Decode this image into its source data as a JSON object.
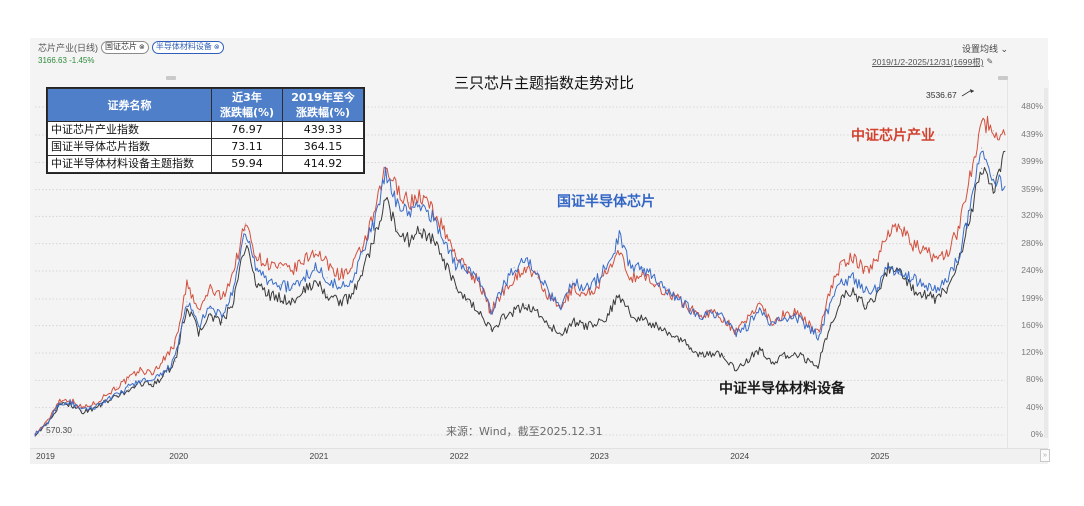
{
  "window": {
    "security_label": "芯片产业(日线)",
    "compare_chips": [
      {
        "label": "国证芯片",
        "close_icon": "close-circle-icon"
      },
      {
        "label": "半导体材料设备",
        "close_icon": "close-circle-icon"
      }
    ],
    "quote": "3166.63 -1.45%",
    "settings_label": "设置均线",
    "settings_icon": "chevron-down-icon",
    "date_range": "2019/1/2-2025/12/31(1699根)",
    "pin_icon": "pin-icon"
  },
  "summary_table": {
    "headers": [
      "证券名称",
      "近3年\n涨跌幅(%)",
      "2019年至今\n涨跌幅(%)"
    ],
    "header_lines": [
      [
        "证券名称"
      ],
      [
        "近3年",
        "涨跌幅(%)"
      ],
      [
        "2019年至今",
        "涨跌幅(%)"
      ]
    ],
    "rows": [
      {
        "name": "中证芯片产业指数",
        "three_year": "76.97",
        "since_2019": "439.33"
      },
      {
        "name": "国证半导体芯片指数",
        "three_year": "73.11",
        "since_2019": "364.15"
      },
      {
        "name": "中证半导体材料设备主题指数",
        "three_year": "59.94",
        "since_2019": "414.92"
      }
    ]
  },
  "annotations": {
    "red_series_label": "中证芯片产业",
    "blue_series_label": "国证半导体芯片",
    "black_series_label": "中证半导体材料设备",
    "source": "来源：Wind，截至2025.12.31",
    "start_value": "570.30",
    "peak_value": "3536.67"
  },
  "colors": {
    "red": "#d2503e",
    "blue": "#3a6cc8",
    "black": "#3a3a3a",
    "header_blue": "#4f7fc8",
    "quote_green": "#2e8b3a"
  },
  "chart_data": {
    "type": "line",
    "title": "三只芯片主题指数走势对比",
    "xlabel": "",
    "ylabel": "",
    "x_ticks": [
      "2019",
      "2020",
      "2021",
      "2022",
      "2023",
      "2024",
      "2025"
    ],
    "y_ticks": [
      "480%",
      "439%",
      "399%",
      "359%",
      "320%",
      "280%",
      "240%",
      "199%",
      "160%",
      "120%",
      "80%",
      "40%",
      "0%"
    ],
    "y_tick_values": [
      480,
      439,
      399,
      359,
      320,
      280,
      240,
      199,
      160,
      120,
      80,
      40,
      0
    ],
    "ylim": [
      0,
      480
    ],
    "xlim": [
      "2019-01",
      "2025-12"
    ],
    "grid": true,
    "legend": "inline-annotations",
    "x": [
      "2019-01",
      "2019-02",
      "2019-03",
      "2019-04",
      "2019-05",
      "2019-06",
      "2019-07",
      "2019-08",
      "2019-09",
      "2019-10",
      "2019-11",
      "2019-12",
      "2020-01",
      "2020-02",
      "2020-03",
      "2020-04",
      "2020-05",
      "2020-06",
      "2020-07",
      "2020-08",
      "2020-09",
      "2020-10",
      "2020-11",
      "2020-12",
      "2021-01",
      "2021-02",
      "2021-03",
      "2021-04",
      "2021-05",
      "2021-06",
      "2021-07",
      "2021-08",
      "2021-09",
      "2021-10",
      "2021-11",
      "2021-12",
      "2022-01",
      "2022-02",
      "2022-03",
      "2022-04",
      "2022-05",
      "2022-06",
      "2022-07",
      "2022-08",
      "2022-09",
      "2022-10",
      "2022-11",
      "2022-12",
      "2023-01",
      "2023-02",
      "2023-03",
      "2023-04",
      "2023-05",
      "2023-06",
      "2023-07",
      "2023-08",
      "2023-09",
      "2023-10",
      "2023-11",
      "2023-12",
      "2024-01",
      "2024-02",
      "2024-03",
      "2024-04",
      "2024-05",
      "2024-06",
      "2024-07",
      "2024-08",
      "2024-09",
      "2024-10",
      "2024-11",
      "2024-12",
      "2025-01",
      "2025-02",
      "2025-03",
      "2025-04",
      "2025-05",
      "2025-06",
      "2025-07",
      "2025-08",
      "2025-09",
      "2025-10",
      "2025-11",
      "2025-12"
    ],
    "series": [
      {
        "name": "中证芯片产业",
        "color": "#d2503e",
        "values": [
          2,
          18,
          50,
          52,
          40,
          45,
          58,
          70,
          82,
          95,
          90,
          110,
          135,
          220,
          180,
          215,
          200,
          240,
          310,
          260,
          250,
          245,
          240,
          255,
          270,
          250,
          235,
          240,
          275,
          320,
          390,
          360,
          340,
          350,
          330,
          300,
          265,
          240,
          225,
          180,
          210,
          230,
          245,
          230,
          200,
          185,
          215,
          205,
          215,
          240,
          265,
          230,
          235,
          220,
          210,
          200,
          185,
          175,
          180,
          170,
          150,
          170,
          195,
          165,
          175,
          180,
          165,
          150,
          210,
          250,
          260,
          240,
          255,
          300,
          305,
          280,
          270,
          260,
          265,
          300,
          380,
          460,
          445,
          439
        ]
      },
      {
        "name": "国证半导体芯片",
        "color": "#3a6cc8",
        "values": [
          1,
          15,
          45,
          48,
          36,
          40,
          50,
          58,
          70,
          80,
          78,
          90,
          112,
          195,
          160,
          185,
          175,
          210,
          300,
          240,
          225,
          220,
          215,
          230,
          245,
          230,
          215,
          225,
          265,
          310,
          380,
          340,
          325,
          335,
          320,
          285,
          250,
          245,
          225,
          180,
          215,
          245,
          255,
          240,
          205,
          190,
          225,
          215,
          225,
          250,
          290,
          245,
          245,
          230,
          215,
          200,
          185,
          175,
          180,
          170,
          148,
          160,
          185,
          160,
          170,
          175,
          160,
          145,
          190,
          225,
          230,
          210,
          215,
          245,
          240,
          230,
          220,
          215,
          225,
          260,
          330,
          420,
          380,
          364
        ]
      },
      {
        "name": "中证半导体材料设备",
        "color": "#3a3a3a",
        "values": [
          1,
          14,
          42,
          46,
          34,
          38,
          48,
          56,
          66,
          76,
          74,
          86,
          108,
          190,
          150,
          175,
          165,
          195,
          280,
          220,
          205,
          200,
          195,
          210,
          225,
          205,
          195,
          200,
          240,
          285,
          345,
          300,
          285,
          300,
          285,
          255,
          215,
          195,
          180,
          155,
          170,
          180,
          190,
          180,
          160,
          145,
          165,
          160,
          160,
          175,
          205,
          175,
          170,
          160,
          150,
          140,
          130,
          115,
          120,
          115,
          95,
          110,
          125,
          105,
          115,
          120,
          110,
          100,
          160,
          200,
          210,
          190,
          205,
          245,
          235,
          215,
          205,
          200,
          215,
          250,
          320,
          390,
          360,
          415
        ]
      }
    ]
  }
}
